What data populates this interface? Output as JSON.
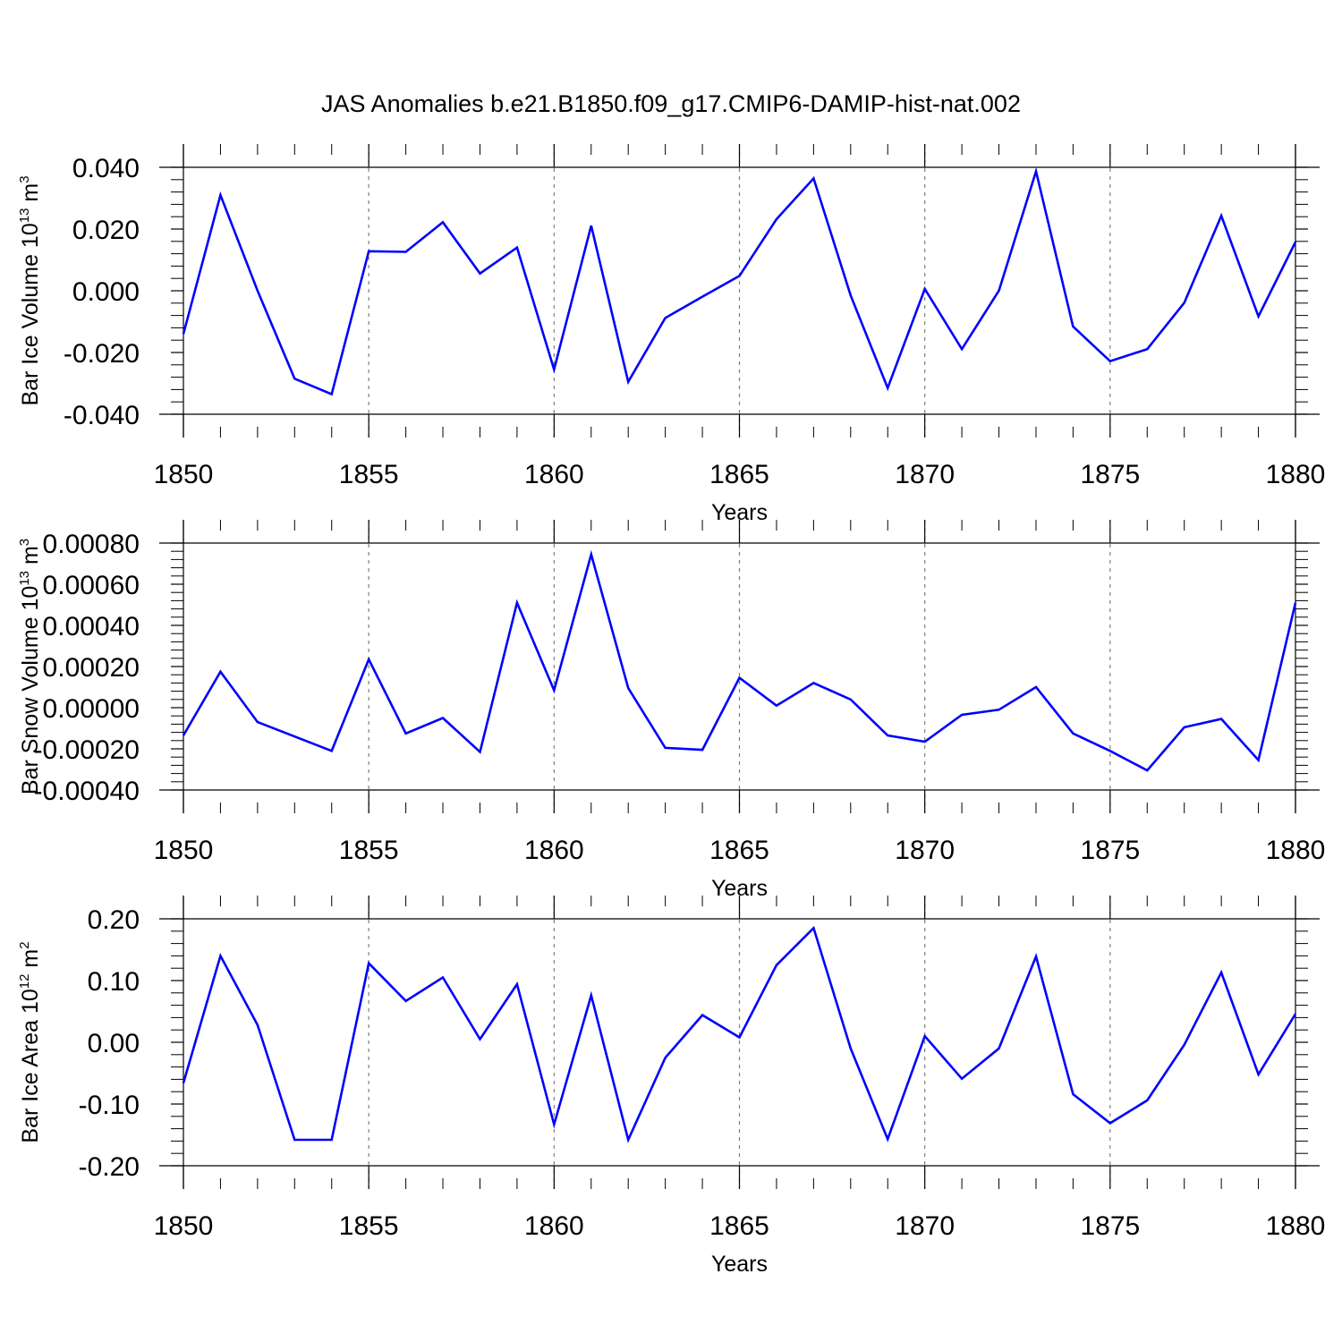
{
  "chart_data": {
    "type": "line",
    "title": "JAS Anomalies b.e21.B1850.f09_g17.CMIP6-DAMIP-hist-nat.002",
    "line_color": "#0000ff",
    "panels": [
      {
        "name": "ice-volume",
        "ylabel": "Bar Ice Volume 10",
        "ylabel_exp": "13",
        "ylabel_unit": " m",
        "ylabel_unit_exp": "3",
        "xlabel": "Years",
        "xlim": [
          1850,
          1880
        ],
        "ylim": [
          -0.04,
          0.04
        ],
        "yticks": [
          -0.04,
          -0.02,
          0.0,
          0.02,
          0.04
        ],
        "ytick_labels": [
          "-0.040",
          "-0.020",
          "0.000",
          "0.020",
          "0.040"
        ],
        "x": [
          1850,
          1851,
          1852,
          1853,
          1854,
          1855,
          1856,
          1857,
          1858,
          1859,
          1860,
          1861,
          1862,
          1863,
          1864,
          1865,
          1866,
          1867,
          1868,
          1869,
          1870,
          1871,
          1872,
          1873,
          1874,
          1875,
          1876,
          1877,
          1878,
          1879,
          1880
        ],
        "values": [
          -0.014,
          0.031,
          0.0,
          -0.0285,
          -0.0335,
          0.0128,
          0.0126,
          0.0222,
          0.0056,
          0.014,
          -0.0255,
          0.0211,
          -0.0295,
          -0.0088,
          -0.0019,
          0.0048,
          0.0232,
          0.0364,
          -0.0015,
          -0.0315,
          0.0006,
          -0.0189,
          0.0,
          0.0387,
          -0.0116,
          -0.0228,
          -0.0189,
          -0.0039,
          0.0243,
          -0.0083,
          0.0158
        ]
      },
      {
        "name": "snow-volume",
        "ylabel": "Bar Snow Volume 10",
        "ylabel_exp": "13",
        "ylabel_unit": " m",
        "ylabel_unit_exp": "3",
        "xlabel": "Years",
        "xlim": [
          1850,
          1880
        ],
        "ylim": [
          -0.0004,
          0.0008
        ],
        "yticks": [
          -0.0004,
          -0.0002,
          0.0,
          0.0002,
          0.0004,
          0.0006,
          0.0008
        ],
        "ytick_labels": [
          "-0.00040",
          "-0.00020",
          "0.00000",
          "0.00020",
          "0.00040",
          "0.00060",
          "0.00080"
        ],
        "x": [
          1850,
          1851,
          1852,
          1853,
          1854,
          1855,
          1856,
          1857,
          1858,
          1859,
          1860,
          1861,
          1862,
          1863,
          1864,
          1865,
          1866,
          1867,
          1868,
          1869,
          1870,
          1871,
          1872,
          1873,
          1874,
          1875,
          1876,
          1877,
          1878,
          1879,
          1880
        ],
        "values": [
          -0.000135,
          0.000175,
          -7e-05,
          -0.00014,
          -0.00021,
          0.000235,
          -0.000125,
          -5e-05,
          -0.000215,
          0.00051,
          8.5e-05,
          0.000745,
          9.5e-05,
          -0.000195,
          -0.000205,
          0.000145,
          1e-05,
          0.00012,
          4e-05,
          -0.000135,
          -0.000165,
          -3.5e-05,
          -1e-05,
          0.0001,
          -0.000125,
          -0.00021,
          -0.000305,
          -9.5e-05,
          -5.5e-05,
          -0.000255,
          0.00051
        ]
      },
      {
        "name": "ice-area",
        "ylabel": "Bar Ice Area 10",
        "ylabel_exp": "12",
        "ylabel_unit": " m",
        "ylabel_unit_exp": "2",
        "xlabel": "Years",
        "xlim": [
          1850,
          1880
        ],
        "ylim": [
          -0.2,
          0.2
        ],
        "yticks": [
          -0.2,
          -0.1,
          0.0,
          0.1,
          0.2
        ],
        "ytick_labels": [
          "-0.20",
          "-0.10",
          "0.00",
          "0.10",
          "0.20"
        ],
        "x": [
          1850,
          1851,
          1852,
          1853,
          1854,
          1855,
          1856,
          1857,
          1858,
          1859,
          1860,
          1861,
          1862,
          1863,
          1864,
          1865,
          1866,
          1867,
          1868,
          1869,
          1870,
          1871,
          1872,
          1873,
          1874,
          1875,
          1876,
          1877,
          1878,
          1879,
          1880
        ],
        "values": [
          -0.066,
          0.14,
          0.028,
          -0.158,
          -0.158,
          0.128,
          0.067,
          0.105,
          0.005,
          0.094,
          -0.133,
          0.076,
          -0.158,
          -0.025,
          0.044,
          0.008,
          0.125,
          0.185,
          -0.01,
          -0.157,
          0.01,
          -0.059,
          -0.01,
          0.139,
          -0.084,
          -0.131,
          -0.094,
          -0.004,
          0.113,
          -0.052,
          0.046
        ]
      }
    ],
    "xticks": [
      1850,
      1855,
      1860,
      1865,
      1870,
      1875,
      1880
    ],
    "xtick_labels": [
      "1850",
      "1855",
      "1860",
      "1865",
      "1870",
      "1875",
      "1880"
    ]
  }
}
